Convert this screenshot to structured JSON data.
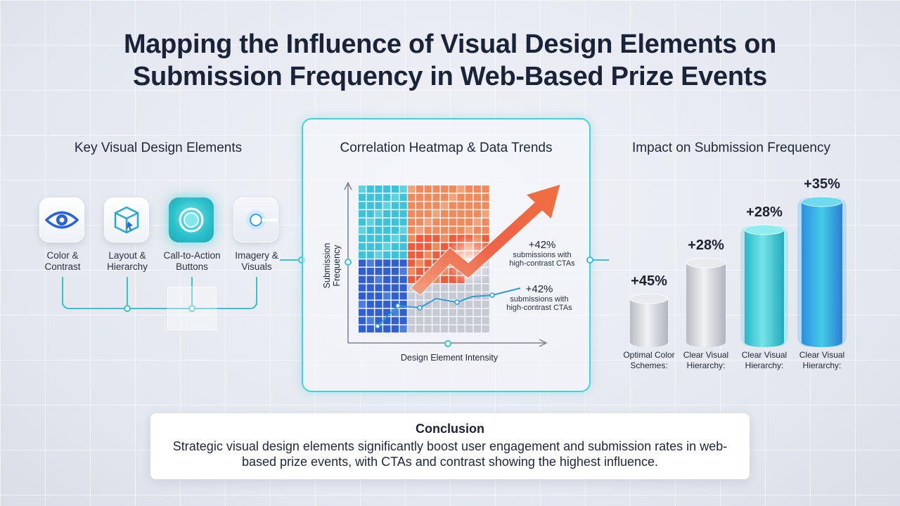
{
  "title": {
    "line1": "Mapping the Influence of Visual Design Elements on",
    "line2": "Submission Frequency in Web-Based Prize Events"
  },
  "left": {
    "title": "Key Visual Design Elements",
    "items": [
      {
        "label1": "Color &",
        "label2": "Contrast",
        "icon": "eye-icon"
      },
      {
        "label1": "Layout &",
        "label2": "Hierarchy",
        "icon": "cube-icon"
      },
      {
        "label1": "Call-to-Action",
        "label2": "Buttons",
        "icon": "button-icon"
      },
      {
        "label1": "Imagery &",
        "label2": "Visuals",
        "icon": "spotlight-icon"
      }
    ]
  },
  "center": {
    "title": "Correlation Heatmap & Data Trends",
    "ylabel": "Submission Frequency",
    "xlabel": "Design Element Intensity",
    "annotations": [
      {
        "value": "+42%",
        "line1": "submissions with",
        "line2": "high-contrast CTAs"
      },
      {
        "value": "+42%",
        "line1": "submissions with",
        "line2": "high-contrast CTAs"
      }
    ],
    "colors": {
      "cyan": "#3cc3d9",
      "blue": "#2f5fd0",
      "orange": "#f08a5a",
      "red": "#ee5c3c",
      "gray": "#c8cad3"
    }
  },
  "right": {
    "title": "Impact on Submission Frequency"
  },
  "chart_data": {
    "type": "bar",
    "categories": [
      "Optimal Color Schemes:",
      "Clear Visual Hierarchy:",
      "Clear Visual Hierarchy:",
      "Clear Visual Hierarchy:"
    ],
    "values": [
      45,
      28,
      28,
      35
    ],
    "value_labels": [
      "+45%",
      "+28%",
      "+28%",
      "+35%"
    ],
    "colors": [
      "#c9ccd2",
      "#c9ccd2",
      "#38c9d4",
      "#3a9ee0"
    ]
  },
  "conclusion": {
    "title": "Conclusion",
    "text": "Strategic visual design elements significantly boost user engagement and submission rates in web-based prize events, with CTAs and contrast showing the highest influence."
  }
}
